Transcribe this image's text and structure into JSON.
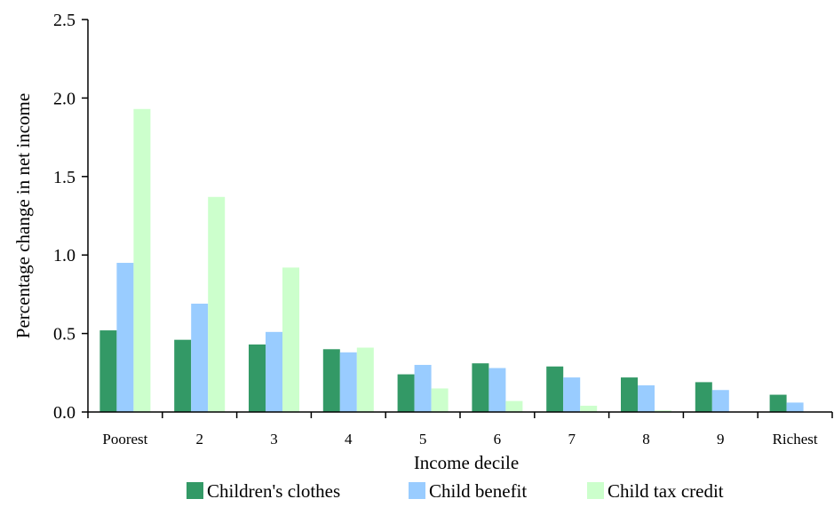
{
  "chart_data": {
    "type": "bar",
    "title": "",
    "xlabel": "Income decile",
    "ylabel": "Percentage change in net income",
    "categories": [
      "Poorest",
      "2",
      "3",
      "4",
      "5",
      "6",
      "7",
      "8",
      "9",
      "Richest"
    ],
    "ylim": [
      0,
      2.5
    ],
    "yticks": [
      "0.0",
      "0.5",
      "1.0",
      "1.5",
      "2.0",
      "2.5"
    ],
    "grid": false,
    "legend": "bottom",
    "series": [
      {
        "name": "Children's clothes",
        "color": "#339966",
        "values": [
          0.52,
          0.46,
          0.43,
          0.4,
          0.24,
          0.31,
          0.29,
          0.22,
          0.19,
          0.11
        ]
      },
      {
        "name": "Child benefit",
        "color": "#99ccff",
        "values": [
          0.95,
          0.69,
          0.51,
          0.38,
          0.3,
          0.28,
          0.22,
          0.17,
          0.14,
          0.06
        ]
      },
      {
        "name": "Child tax credit",
        "color": "#ccffcc",
        "values": [
          1.93,
          1.37,
          0.92,
          0.41,
          0.15,
          0.07,
          0.04,
          0.01,
          0.0,
          0.0
        ]
      }
    ]
  }
}
